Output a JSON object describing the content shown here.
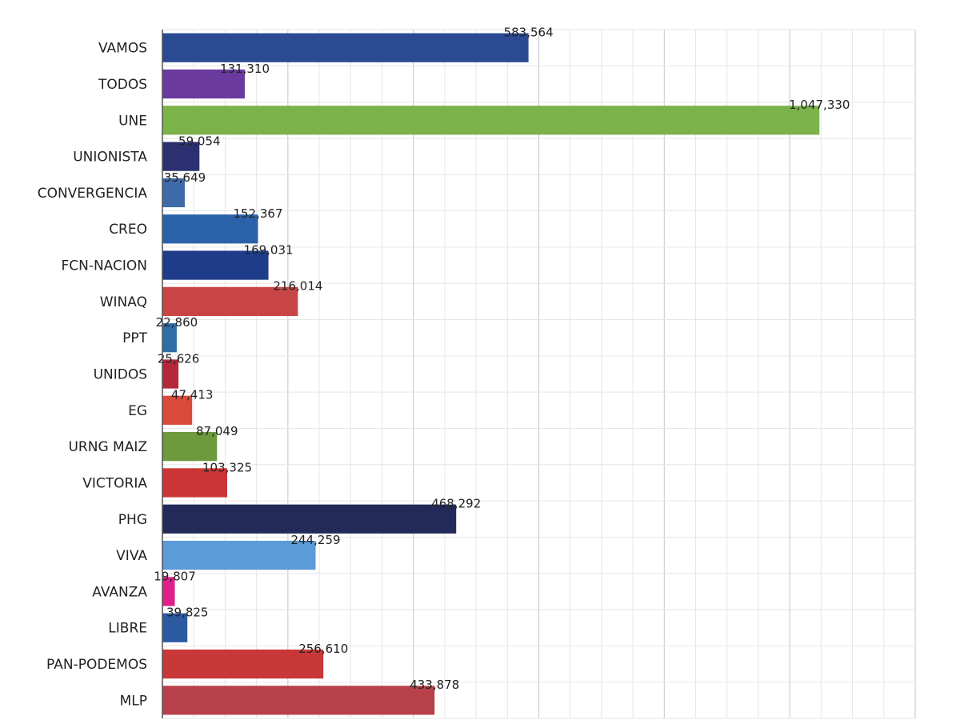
{
  "chart_data": {
    "type": "bar",
    "orientation": "horizontal",
    "title": "",
    "xlabel": "",
    "ylabel": "",
    "grid": true,
    "legend": "none",
    "xlim": [
      0,
      1200000
    ],
    "categories": [
      "VAMOS",
      "TODOS",
      "UNE",
      "UNIONISTA",
      "CONVERGENCIA",
      "CREO",
      "FCN-NACION",
      "WINAQ",
      "PPT",
      "UNIDOS",
      "EG",
      "URNG MAIZ",
      "VICTORIA",
      "PHG",
      "VIVA",
      "AVANZA",
      "LIBRE",
      "PAN-PODEMOS",
      "MLP"
    ],
    "values": [
      583564,
      131310,
      1047330,
      59054,
      35649,
      152367,
      169031,
      216014,
      22860,
      25626,
      47413,
      87049,
      103325,
      468292,
      244259,
      19807,
      39825,
      256610,
      433878
    ],
    "value_labels": [
      "583,564",
      "131,310",
      "1,047,330",
      "59,054",
      "35,649",
      "152,367",
      "169,031",
      "216,014",
      "22,860",
      "25,626",
      "47,413",
      "87,049",
      "103,325",
      "468,292",
      "244,259",
      "19,807",
      "39,825",
      "256,610",
      "433,878"
    ],
    "colors": [
      "#2a4a93",
      "#6a3a9e",
      "#7cb24a",
      "#2b3070",
      "#3f6aaa",
      "#2a62aa",
      "#1f3c8a",
      "#c94545",
      "#2f6ea6",
      "#b4283a",
      "#d94a3a",
      "#6d9a3c",
      "#cc3535",
      "#232a5a",
      "#5b9bd8",
      "#e0208a",
      "#2c5aa0",
      "#c83838",
      "#b8404a"
    ]
  }
}
